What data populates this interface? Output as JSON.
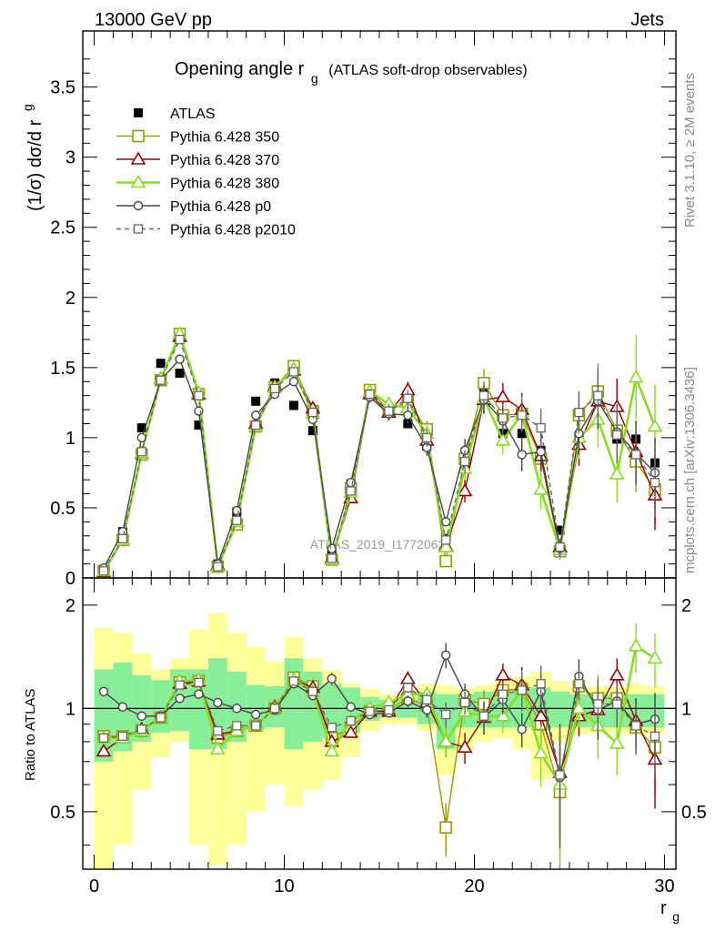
{
  "header": {
    "left": "13000 GeV pp",
    "right": "Jets",
    "side_top": "Rivet 3.1.10, ≥ 2M events",
    "side_bottom": "mcplots.cern.ch [arXiv:1306.3436]",
    "watermark": "ATLAS_2019_I1772062"
  },
  "colors": {
    "atlas": "#000000",
    "p350": "#999900",
    "p370": "#990000",
    "p380": "#88dd22",
    "p0": "#444444",
    "p2010": "#666666",
    "band_inner": "#88ee99",
    "band_outer": "#ffff99"
  },
  "chart_data": [
    {
      "type": "line",
      "title": "Opening angle r",
      "title_sub": "g",
      "title_suffix": "(ATLAS soft-drop observables)",
      "ylabel": "(1/σ) dσ/d r",
      "ylabel_sub": "g",
      "xlim": [
        -0.6,
        30.6
      ],
      "ylim": [
        0,
        3.9
      ],
      "yticks": [
        "0",
        "0.5",
        "1",
        "1.5",
        "2",
        "2.5",
        "3",
        "3.5"
      ],
      "x": [
        0.5,
        1.5,
        2.5,
        3.5,
        4.5,
        5.5,
        6.5,
        7.5,
        8.5,
        9.5,
        10.5,
        11.5,
        12.5,
        13.5,
        14.5,
        15.5,
        16.5,
        17.5,
        18.5,
        19.5,
        20.5,
        21.5,
        22.5,
        23.5,
        24.5,
        25.5,
        26.5,
        27.5,
        28.5,
        29.5
      ],
      "series": [
        {
          "name": "ATLAS",
          "key": "atlas",
          "values": [
            0.06,
            0.33,
            1.07,
            1.53,
            1.46,
            1.09,
            0.1,
            0.47,
            1.26,
            1.39,
            1.23,
            1.05,
            0.17,
            0.67,
            1.34,
            1.2,
            1.1,
            0.94,
            0.28,
            0.8,
            1.35,
            1.03,
            1.03,
            0.91,
            0.34,
            1.0,
            1.27,
            0.99,
            0.99,
            0.82
          ]
        },
        {
          "name": "Pythia 6.428 350",
          "key": "p350",
          "values": [
            0.05,
            0.27,
            0.88,
            1.41,
            1.74,
            1.31,
            0.08,
            0.38,
            1.08,
            1.36,
            1.51,
            1.19,
            0.13,
            0.64,
            1.34,
            1.19,
            1.26,
            1.06,
            0.12,
            0.85,
            1.39,
            1.16,
            1.17,
            0.85,
            0.19,
            1.16,
            1.33,
            1.05,
            0.83,
            0.63
          ],
          "errors": [
            0.01,
            0.02,
            0.03,
            0.03,
            0.03,
            0.03,
            0.01,
            0.02,
            0.03,
            0.03,
            0.03,
            0.03,
            0.01,
            0.03,
            0.04,
            0.05,
            0.06,
            0.06,
            0.02,
            0.08,
            0.1,
            0.1,
            0.12,
            0.14,
            0.06,
            0.15,
            0.2,
            0.2,
            0.22,
            0.25
          ]
        },
        {
          "name": "Pythia 6.428 370",
          "key": "p370",
          "values": [
            0.045,
            0.27,
            0.89,
            1.42,
            1.72,
            1.31,
            0.09,
            0.4,
            1.1,
            1.37,
            1.48,
            1.21,
            0.14,
            0.57,
            1.31,
            1.18,
            1.34,
            0.98,
            0.23,
            0.62,
            1.27,
            1.29,
            1.2,
            0.87,
            0.22,
            0.95,
            1.26,
            1.22,
            0.9,
            0.59
          ],
          "errors": [
            0.01,
            0.02,
            0.03,
            0.03,
            0.03,
            0.03,
            0.01,
            0.02,
            0.03,
            0.03,
            0.03,
            0.03,
            0.01,
            0.03,
            0.04,
            0.05,
            0.06,
            0.06,
            0.03,
            0.08,
            0.1,
            0.1,
            0.12,
            0.14,
            0.06,
            0.15,
            0.2,
            0.2,
            0.22,
            0.25
          ]
        },
        {
          "name": "Pythia 6.428 380",
          "key": "p380",
          "values": [
            0.05,
            0.27,
            0.89,
            1.42,
            1.74,
            1.32,
            0.08,
            0.4,
            1.08,
            1.36,
            1.49,
            1.17,
            0.13,
            0.61,
            1.33,
            1.24,
            1.21,
            1.03,
            0.22,
            0.78,
            1.28,
            0.98,
            1.17,
            0.63,
            0.2,
            1.0,
            1.13,
            0.74,
            1.43,
            1.08
          ],
          "errors": [
            0.01,
            0.02,
            0.03,
            0.03,
            0.03,
            0.03,
            0.01,
            0.02,
            0.03,
            0.03,
            0.03,
            0.03,
            0.01,
            0.03,
            0.04,
            0.05,
            0.06,
            0.06,
            0.03,
            0.08,
            0.1,
            0.1,
            0.12,
            0.14,
            0.06,
            0.15,
            0.2,
            0.2,
            0.3,
            0.3
          ]
        },
        {
          "name": "Pythia 6.428 p0",
          "key": "p0",
          "values": [
            0.07,
            0.33,
            1.0,
            1.41,
            1.56,
            1.19,
            0.1,
            0.48,
            1.16,
            1.31,
            1.4,
            1.13,
            0.21,
            0.68,
            1.29,
            1.17,
            1.16,
            0.93,
            0.4,
            0.91,
            1.27,
            1.12,
            0.88,
            0.9,
            0.21,
            1.03,
            1.26,
            1.04,
            0.89,
            0.75
          ],
          "errors": [
            0.01,
            0.02,
            0.03,
            0.03,
            0.03,
            0.03,
            0.01,
            0.02,
            0.03,
            0.03,
            0.03,
            0.03,
            0.01,
            0.03,
            0.04,
            0.05,
            0.06,
            0.06,
            0.03,
            0.08,
            0.1,
            0.1,
            0.12,
            0.14,
            0.06,
            0.15,
            0.2,
            0.2,
            0.22,
            0.25
          ]
        },
        {
          "name": "Pythia 6.428 p2010",
          "key": "p2010",
          "values": [
            0.05,
            0.28,
            0.9,
            1.41,
            1.7,
            1.3,
            0.08,
            0.41,
            1.09,
            1.35,
            1.47,
            1.18,
            0.14,
            0.62,
            1.31,
            1.19,
            1.28,
            1.0,
            0.27,
            0.83,
            1.3,
            1.14,
            1.16,
            1.07,
            0.22,
            1.18,
            1.3,
            1.02,
            0.88,
            0.68
          ],
          "errors": [
            0.01,
            0.02,
            0.03,
            0.03,
            0.03,
            0.03,
            0.01,
            0.02,
            0.03,
            0.03,
            0.03,
            0.03,
            0.01,
            0.03,
            0.04,
            0.05,
            0.06,
            0.06,
            0.03,
            0.08,
            0.1,
            0.1,
            0.12,
            0.14,
            0.06,
            0.15,
            0.2,
            0.2,
            0.22,
            0.25
          ]
        }
      ],
      "legend_position": "top-left"
    },
    {
      "type": "line",
      "ylabel": "Ratio to ATLAS",
      "xlabel": "r",
      "xlabel_sub": "g",
      "xlim": [
        -0.6,
        30.6
      ],
      "ylim": [
        0.34,
        2.4
      ],
      "log_y": true,
      "yticks": [
        "0.5",
        "1",
        "2"
      ],
      "xticks": [
        "0",
        "10",
        "20",
        "30"
      ],
      "bands": {
        "inner": [
          [
            0.7,
            1.3
          ],
          [
            0.75,
            1.36
          ],
          [
            0.8,
            1.25
          ],
          [
            0.85,
            1.21
          ],
          [
            0.86,
            1.3
          ],
          [
            0.76,
            1.3
          ],
          [
            0.76,
            1.4
          ],
          [
            0.8,
            1.28
          ],
          [
            0.87,
            1.17
          ],
          [
            0.88,
            1.16
          ],
          [
            0.76,
            1.4
          ],
          [
            0.8,
            1.28
          ],
          [
            0.82,
            1.18
          ],
          [
            0.85,
            1.15
          ],
          [
            0.92,
            1.08
          ],
          [
            0.94,
            1.06
          ],
          [
            0.94,
            1.06
          ],
          [
            0.9,
            1.12
          ],
          [
            0.76,
            1.1
          ],
          [
            0.88,
            1.1
          ],
          [
            0.88,
            1.12
          ],
          [
            0.88,
            1.13
          ],
          [
            0.88,
            1.14
          ],
          [
            0.86,
            1.15
          ],
          [
            0.88,
            1.12
          ],
          [
            0.88,
            1.1
          ],
          [
            0.88,
            1.1
          ],
          [
            0.88,
            1.1
          ],
          [
            0.88,
            1.1
          ],
          [
            0.88,
            1.1
          ]
        ],
        "outer": [
          [
            0.3,
            1.72
          ],
          [
            0.4,
            1.66
          ],
          [
            0.58,
            1.45
          ],
          [
            0.72,
            1.3
          ],
          [
            0.8,
            1.4
          ],
          [
            0.4,
            1.7
          ],
          [
            0.35,
            1.9
          ],
          [
            0.4,
            1.66
          ],
          [
            0.5,
            1.51
          ],
          [
            0.6,
            1.37
          ],
          [
            0.52,
            1.62
          ],
          [
            0.58,
            1.4
          ],
          [
            0.62,
            1.29
          ],
          [
            0.72,
            1.18
          ],
          [
            0.86,
            1.14
          ],
          [
            0.9,
            1.1
          ],
          [
            0.9,
            1.1
          ],
          [
            0.86,
            1.18
          ],
          [
            0.64,
            1.17
          ],
          [
            0.76,
            1.14
          ],
          [
            0.8,
            1.17
          ],
          [
            0.82,
            1.2
          ],
          [
            0.76,
            1.24
          ],
          [
            0.62,
            1.28
          ],
          [
            0.8,
            1.2
          ],
          [
            0.84,
            1.15
          ],
          [
            0.85,
            1.16
          ],
          [
            0.85,
            1.16
          ],
          [
            0.84,
            1.18
          ],
          [
            0.84,
            1.16
          ]
        ]
      },
      "series": [
        {
          "name": "Pythia 6.428 350",
          "key": "p350",
          "values": [
            0.83,
            0.83,
            0.86,
            0.94,
            1.19,
            1.2,
            0.82,
            0.86,
            0.89,
            1.0,
            1.23,
            1.16,
            0.82,
            0.88,
            0.98,
            0.99,
            1.07,
            1.02,
            0.45,
            1.06,
            1.03,
            1.13,
            1.14,
            0.9,
            0.57,
            1.16,
            1.07,
            1.07,
            0.88,
            0.77
          ],
          "errors": [
            0.01,
            0.01,
            0.01,
            0.01,
            0.01,
            0.01,
            0.01,
            0.01,
            0.01,
            0.01,
            0.01,
            0.01,
            0.01,
            0.01,
            0.02,
            0.03,
            0.04,
            0.05,
            0.08,
            0.08,
            0.1,
            0.1,
            0.15,
            0.15,
            0.25,
            0.12,
            0.18,
            0.15,
            0.15,
            0.2
          ]
        },
        {
          "name": "Pythia 6.428 370",
          "key": "p370",
          "values": [
            0.75,
            0.82,
            0.87,
            0.94,
            1.18,
            1.2,
            0.84,
            0.86,
            0.89,
            1.01,
            1.21,
            1.15,
            0.8,
            0.85,
            0.98,
            0.98,
            1.22,
            1.04,
            0.8,
            0.77,
            0.94,
            1.25,
            1.17,
            0.95,
            0.65,
            0.95,
            0.99,
            1.25,
            0.92,
            0.71
          ],
          "errors": [
            0.01,
            0.01,
            0.01,
            0.01,
            0.01,
            0.01,
            0.01,
            0.01,
            0.01,
            0.01,
            0.01,
            0.01,
            0.01,
            0.01,
            0.02,
            0.03,
            0.04,
            0.05,
            0.08,
            0.08,
            0.1,
            0.1,
            0.15,
            0.15,
            0.25,
            0.12,
            0.18,
            0.15,
            0.15,
            0.2
          ]
        },
        {
          "name": "Pythia 6.428 380",
          "key": "p380",
          "values": [
            0.82,
            0.82,
            0.86,
            0.94,
            1.2,
            1.21,
            0.76,
            0.86,
            0.89,
            1.0,
            1.21,
            1.12,
            0.75,
            0.92,
            1.0,
            1.04,
            1.1,
            1.1,
            0.8,
            0.98,
            0.95,
            0.95,
            1.14,
            0.74,
            0.6,
            1.0,
            0.89,
            0.79,
            1.52,
            1.4
          ],
          "errors": [
            0.01,
            0.01,
            0.01,
            0.01,
            0.01,
            0.01,
            0.01,
            0.01,
            0.01,
            0.01,
            0.01,
            0.01,
            0.01,
            0.01,
            0.02,
            0.03,
            0.04,
            0.05,
            0.08,
            0.08,
            0.1,
            0.1,
            0.15,
            0.15,
            0.25,
            0.12,
            0.18,
            0.15,
            0.25,
            0.25
          ]
        },
        {
          "name": "Pythia 6.428 p0",
          "key": "p0",
          "values": [
            1.12,
            1.01,
            0.95,
            0.95,
            1.07,
            1.1,
            1.04,
            1.0,
            0.96,
            0.99,
            1.18,
            1.09,
            1.22,
            1.01,
            0.96,
            0.97,
            1.05,
            0.99,
            1.43,
            1.1,
            0.94,
            1.06,
            0.87,
            1.12,
            0.63,
            1.24,
            0.99,
            1.05,
            0.9,
            0.93
          ],
          "errors": [
            0.02,
            0.01,
            0.01,
            0.01,
            0.01,
            0.01,
            0.02,
            0.01,
            0.01,
            0.01,
            0.01,
            0.01,
            0.05,
            0.02,
            0.02,
            0.03,
            0.04,
            0.05,
            0.12,
            0.08,
            0.1,
            0.1,
            0.1,
            0.15,
            0.2,
            0.15,
            0.18,
            0.15,
            0.15,
            0.18
          ]
        },
        {
          "name": "Pythia 6.428 p2010",
          "key": "p2010",
          "values": [
            0.82,
            0.83,
            0.87,
            0.94,
            1.17,
            1.19,
            0.86,
            0.89,
            0.89,
            1.0,
            1.2,
            1.12,
            0.88,
            0.92,
            0.98,
            0.99,
            1.15,
            1.06,
            0.96,
            1.04,
            0.95,
            1.1,
            1.13,
            1.18,
            0.64,
            1.18,
            1.03,
            1.03,
            0.89,
            0.83
          ],
          "errors": [
            0.01,
            0.01,
            0.01,
            0.01,
            0.01,
            0.01,
            0.01,
            0.01,
            0.01,
            0.01,
            0.01,
            0.01,
            0.01,
            0.01,
            0.02,
            0.03,
            0.04,
            0.05,
            0.08,
            0.08,
            0.1,
            0.1,
            0.15,
            0.15,
            0.25,
            0.12,
            0.18,
            0.15,
            0.15,
            0.2
          ]
        }
      ]
    }
  ]
}
